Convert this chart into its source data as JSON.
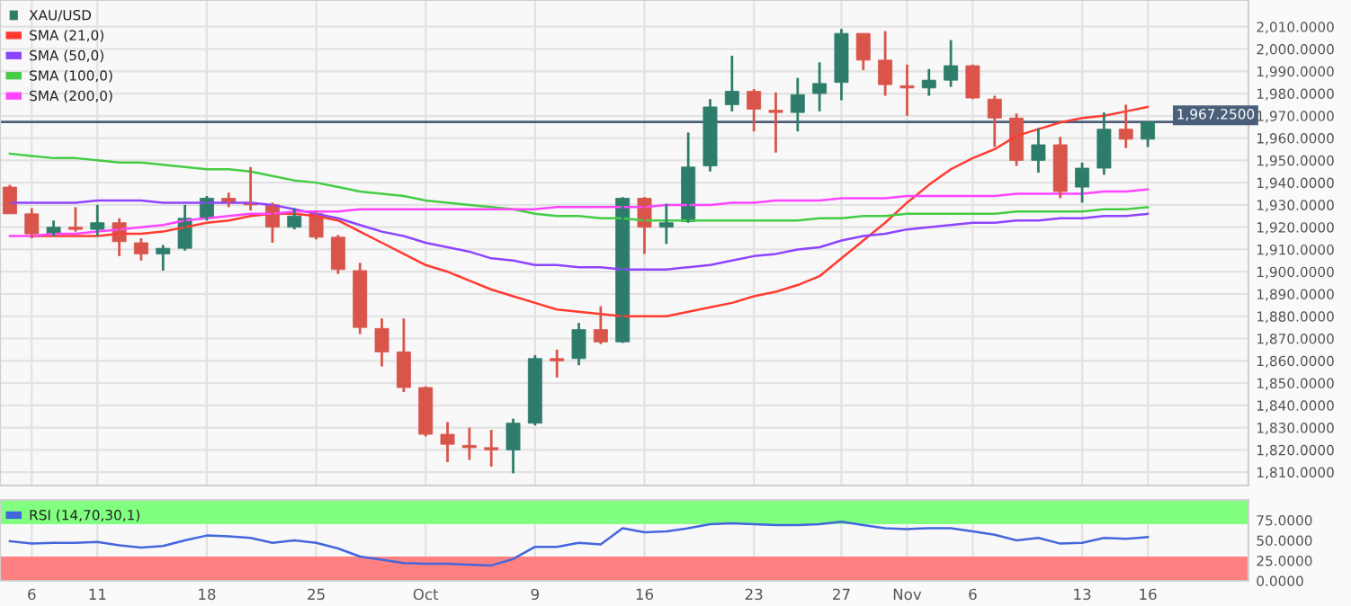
{
  "chart_data": [
    {
      "type": "candlestick",
      "legend": "top left",
      "grid": true,
      "tick_labels": "y",
      "categories": [
        null,
        null,
        null,
        null,
        null,
        null,
        null,
        null,
        null,
        null,
        null,
        null,
        null,
        null,
        null,
        null,
        null,
        null,
        null,
        null,
        null,
        null,
        null,
        null,
        null,
        null,
        null,
        null,
        null,
        null,
        null,
        null,
        null,
        null,
        null,
        null,
        null,
        null,
        null,
        null,
        null,
        null,
        null,
        null,
        null,
        null,
        null,
        null,
        null,
        null,
        null,
        null,
        null
      ],
      "ylim": [
        1804,
        2022
      ],
      "yticks": [
        {
          "value": 1810,
          "label": "1,810.0000"
        },
        {
          "value": 1820,
          "label": "1,820.0000"
        },
        {
          "value": 1830,
          "label": "1,830.0000"
        },
        {
          "value": 1840,
          "label": "1,840.0000"
        },
        {
          "value": 1850,
          "label": "1,850.0000"
        },
        {
          "value": 1860,
          "label": "1,860.0000"
        },
        {
          "value": 1870,
          "label": "1,870.0000"
        },
        {
          "value": 1880,
          "label": "1,880.0000"
        },
        {
          "value": 1890,
          "label": "1,890.0000"
        },
        {
          "value": 1900,
          "label": "1,900.0000"
        },
        {
          "value": 1910,
          "label": "1,910.0000"
        },
        {
          "value": 1920,
          "label": "1,920.0000"
        },
        {
          "value": 1930,
          "label": "1,930.0000"
        },
        {
          "value": 1940,
          "label": "1,940.0000"
        },
        {
          "value": 1950,
          "label": "1,950.0000"
        },
        {
          "value": 1960,
          "label": "1,960.0000"
        },
        {
          "value": 1970,
          "label": "1,970.0000"
        },
        {
          "value": 1980,
          "label": "1,980.0000"
        },
        {
          "value": 1990,
          "label": "1,990.0000"
        },
        {
          "value": 2000,
          "label": "2,000.0000"
        },
        {
          "value": 2010,
          "label": "2,010.0000"
        }
      ],
      "ref_lines": [
        {
          "axis": "y",
          "value": 1967.25,
          "label": "1,967.2500",
          "color": "#4a5f7a"
        }
      ],
      "series": [
        {
          "name": "XAU/USD",
          "type": "candlestick",
          "color": "#2e7d6b",
          "ohlc": [
            [
              1938,
              1939,
              1926,
              1926
            ],
            [
              1926,
              1928.5,
              1915,
              1917
            ],
            [
              1917,
              1923,
              1916,
              1920
            ],
            [
              1920,
              1929,
              1918,
              1919
            ],
            [
              1919,
              1930,
              1916,
              1922
            ],
            [
              1922,
              1924,
              1907,
              1913.5
            ],
            [
              1913,
              1915,
              1905,
              1908
            ],
            [
              1908,
              1912,
              1900.5,
              1910.5
            ],
            [
              1910.5,
              1930,
              1909.5,
              1924
            ],
            [
              1924,
              1934,
              1923,
              1933
            ],
            [
              1933,
              1935.5,
              1929,
              1931
            ],
            [
              1931,
              1947,
              1927.5,
              1930
            ],
            [
              1930,
              1931,
              1913,
              1920
            ],
            [
              1920,
              1928.5,
              1919,
              1925
            ],
            [
              1926,
              1927,
              1914.5,
              1915.5
            ],
            [
              1915.5,
              1916.5,
              1899,
              1901
            ],
            [
              1900.5,
              1904,
              1872,
              1875
            ],
            [
              1874.5,
              1879,
              1857.5,
              1864
            ],
            [
              1864,
              1879,
              1846,
              1848
            ],
            [
              1848,
              1848.5,
              1826,
              1827
            ],
            [
              1827,
              1832.5,
              1814.5,
              1822.5
            ],
            [
              1822,
              1830,
              1815.5,
              1821
            ],
            [
              1821,
              1829,
              1812.5,
              1820
            ],
            [
              1820,
              1834,
              1809.5,
              1832
            ],
            [
              1832,
              1862.5,
              1831,
              1861
            ],
            [
              1861,
              1865,
              1852.5,
              1860
            ],
            [
              1861,
              1877,
              1858,
              1874
            ],
            [
              1874,
              1884.5,
              1867.5,
              1868.5
            ],
            [
              1868.5,
              1933.5,
              1868,
              1933
            ],
            [
              1933,
              1933.5,
              1908,
              1920
            ],
            [
              1920,
              1930.5,
              1912.5,
              1922
            ],
            [
              1922.5,
              1962.5,
              1922,
              1947
            ],
            [
              1947.5,
              1977.5,
              1945,
              1974
            ],
            [
              1975,
              1997,
              1972,
              1981
            ],
            [
              1981,
              1982,
              1963,
              1973
            ],
            [
              1972.5,
              1980.5,
              1953.5,
              1971.5
            ],
            [
              1971.5,
              1987,
              1963,
              1979.5
            ],
            [
              1980,
              1994,
              1972,
              1984.5
            ],
            [
              1985,
              2009,
              1977,
              2007
            ],
            [
              2007,
              2007,
              1990.5,
              1995
            ],
            [
              1995,
              2008,
              1979,
              1984
            ],
            [
              1983.5,
              1993,
              1970,
              1982.5
            ],
            [
              1982.5,
              1991,
              1979,
              1986
            ],
            [
              1986,
              2004,
              1983,
              1992.5
            ],
            [
              1992.5,
              1993,
              1977.5,
              1978
            ],
            [
              1977.5,
              1979,
              1956,
              1969
            ],
            [
              1969,
              1971,
              1947.5,
              1950
            ],
            [
              1950,
              1964.5,
              1944.5,
              1957
            ],
            [
              1957,
              1960.5,
              1933,
              1936
            ],
            [
              1938,
              1949,
              1931,
              1946.5
            ],
            [
              1946.5,
              1971.5,
              1943.5,
              1964
            ],
            [
              1964,
              1975,
              1955.5,
              1959.5
            ],
            [
              1959.5,
              1967.5,
              1956,
              1967.25
            ]
          ],
          "colors": [
            "#d9544a",
            "#d9544a",
            "#2e7d6b",
            "#d9544a",
            "#2e7d6b",
            "#d9544a",
            "#d9544a",
            "#2e7d6b",
            "#2e7d6b",
            "#2e7d6b",
            "#d9544a",
            "#d9544a",
            "#d9544a",
            "#2e7d6b",
            "#d9544a",
            "#d9544a",
            "#d9544a",
            "#d9544a",
            "#d9544a",
            "#d9544a",
            "#d9544a",
            "#d9544a",
            "#d9544a",
            "#2e7d6b",
            "#2e7d6b",
            "#d9544a",
            "#2e7d6b",
            "#d9544a",
            "#2e7d6b",
            "#d9544a",
            "#2e7d6b",
            "#2e7d6b",
            "#2e7d6b",
            "#2e7d6b",
            "#d9544a",
            "#d9544a",
            "#2e7d6b",
            "#2e7d6b",
            "#2e7d6b",
            "#d9544a",
            "#d9544a",
            "#d9544a",
            "#2e7d6b",
            "#2e7d6b",
            "#d9544a",
            "#d9544a",
            "#d9544a",
            "#2e7d6b",
            "#d9544a",
            "#2e7d6b",
            "#2e7d6b",
            "#d9544a",
            "#2e7d6b"
          ]
        },
        {
          "name": "SMA (21,0)",
          "type": "line",
          "color": "#ff3b30",
          "values": [
            null,
            1916,
            1916,
            1916,
            1916,
            1917,
            1917,
            1918,
            1920,
            1922,
            1923,
            1925,
            1926,
            1926,
            1925,
            1923,
            1918,
            1913,
            1908,
            1903,
            1900,
            1896,
            1892,
            1889,
            1886,
            1883,
            1882,
            1881,
            1880,
            1880,
            1880,
            1882,
            1884,
            1886,
            1889,
            1891,
            1894,
            1898,
            1906,
            1914,
            1922,
            1931,
            1939,
            1946,
            1951,
            1955,
            1961,
            1964,
            1967,
            1969,
            1970,
            1972,
            1974
          ]
        },
        {
          "name": "SMA (50,0)",
          "type": "line",
          "color": "#8e44ff",
          "values": [
            1931,
            1931,
            1931,
            1931,
            1932,
            1932,
            1932,
            1931,
            1931,
            1931,
            1931,
            1931,
            1930,
            1928,
            1926,
            1924,
            1921,
            1918,
            1916,
            1913,
            1911,
            1909,
            1906,
            1905,
            1903,
            1903,
            1902,
            1902,
            1901,
            1901,
            1901,
            1902,
            1903,
            1905,
            1907,
            1908,
            1910,
            1911,
            1914,
            1916,
            1917,
            1919,
            1920,
            1921,
            1922,
            1922,
            1923,
            1923,
            1924,
            1924,
            1925,
            1925,
            1926
          ]
        },
        {
          "name": "SMA (100,0)",
          "type": "line",
          "color": "#44cc44",
          "values": [
            1953,
            1952,
            1951,
            1951,
            1950,
            1949,
            1949,
            1948,
            1947,
            1946,
            1946,
            1945,
            1943,
            1941,
            1940,
            1938,
            1936,
            1935,
            1934,
            1932,
            1931,
            1930,
            1929,
            1928,
            1926,
            1925,
            1925,
            1924,
            1924,
            1923,
            1923,
            1923,
            1923,
            1923,
            1923,
            1923,
            1923,
            1924,
            1924,
            1925,
            1925,
            1926,
            1926,
            1926,
            1926,
            1926,
            1927,
            1927,
            1927,
            1927,
            1928,
            1928,
            1929
          ]
        },
        {
          "name": "SMA (200,0)",
          "type": "line",
          "color": "#ff44ff",
          "values": [
            1916,
            1916,
            1917,
            1917,
            1918,
            1919,
            1920,
            1921,
            1923,
            1924,
            1925,
            1926,
            1926,
            1927,
            1927,
            1927,
            1928,
            1928,
            1928,
            1928,
            1928,
            1928,
            1928,
            1928,
            1928,
            1929,
            1929,
            1929,
            1929,
            1929,
            1930,
            1930,
            1930,
            1931,
            1931,
            1932,
            1932,
            1932,
            1933,
            1933,
            1933,
            1934,
            1934,
            1934,
            1934,
            1934,
            1935,
            1935,
            1935,
            1935,
            1936,
            1936,
            1937
          ]
        }
      ]
    },
    {
      "type": "line",
      "legend": "top left",
      "grid": "x",
      "categories": [
        null,
        "6",
        null,
        null,
        "11",
        null,
        null,
        null,
        null,
        "18",
        null,
        null,
        null,
        null,
        "25",
        null,
        null,
        null,
        null,
        "Oct",
        null,
        null,
        null,
        null,
        "9",
        null,
        null,
        null,
        null,
        "16",
        null,
        null,
        null,
        null,
        "23",
        null,
        null,
        null,
        "27",
        null,
        null,
        "Nov",
        null,
        null,
        "6",
        null,
        null,
        null,
        null,
        "13",
        null,
        null,
        "16"
      ],
      "ylim": [
        0,
        100
      ],
      "yticks": [
        {
          "value": 0,
          "label": "0.0000"
        },
        {
          "value": 25,
          "label": "25.0000"
        },
        {
          "value": 50,
          "label": "50.0000"
        },
        {
          "value": 75,
          "label": "75.0000"
        }
      ],
      "bands": [
        {
          "axis": "y",
          "from": 70,
          "to": 100,
          "color": "#80ff80"
        },
        {
          "axis": "y",
          "from": 0,
          "to": 30,
          "color": "#ff8080"
        }
      ],
      "series": [
        {
          "name": "RSI (14,70,30,1)",
          "color": "#4466dd",
          "values": [
            49,
            46,
            47,
            47,
            48,
            44,
            41,
            43,
            50,
            56,
            55,
            53,
            47,
            50,
            47,
            40,
            30,
            26,
            22,
            21,
            21,
            20,
            19,
            27,
            42,
            42,
            47,
            45,
            65,
            60,
            61,
            65,
            70,
            71,
            70,
            69,
            69,
            70,
            73,
            69,
            65,
            64,
            65,
            65,
            61,
            57,
            50,
            53,
            46,
            47,
            53,
            52,
            54
          ]
        }
      ]
    }
  ]
}
